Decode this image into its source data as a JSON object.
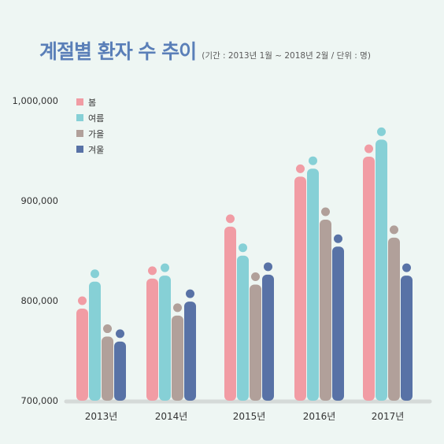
{
  "chart_data": {
    "type": "bar",
    "title": "계절별 환자 수 추이",
    "subtitle": "(기간 : 2013년 1월 ~ 2018년 2월 / 단위 : 명)",
    "categories": [
      "2013년",
      "2014년",
      "2015년",
      "2016년",
      "2017년"
    ],
    "series": [
      {
        "name": "봄",
        "color": "#f19ca4",
        "values": [
          800000,
          830000,
          882000,
          932000,
          952000
        ]
      },
      {
        "name": "여름",
        "color": "#86d0d6",
        "values": [
          827000,
          833000,
          853000,
          940000,
          969000
        ]
      },
      {
        "name": "가을",
        "color": "#b1a09a",
        "values": [
          772000,
          793000,
          824000,
          889000,
          871000
        ]
      },
      {
        "name": "겨울",
        "color": "#5872a6",
        "values": [
          767000,
          807000,
          834000,
          862000,
          833000
        ]
      }
    ],
    "ylim": [
      700000,
      1000000
    ],
    "yticks": [
      700000,
      800000,
      900000,
      1000000
    ],
    "ytick_labels": [
      "700,000",
      "800,000",
      "900,000",
      "1,000,000"
    ],
    "legend_position": "top-left",
    "grid": false
  }
}
